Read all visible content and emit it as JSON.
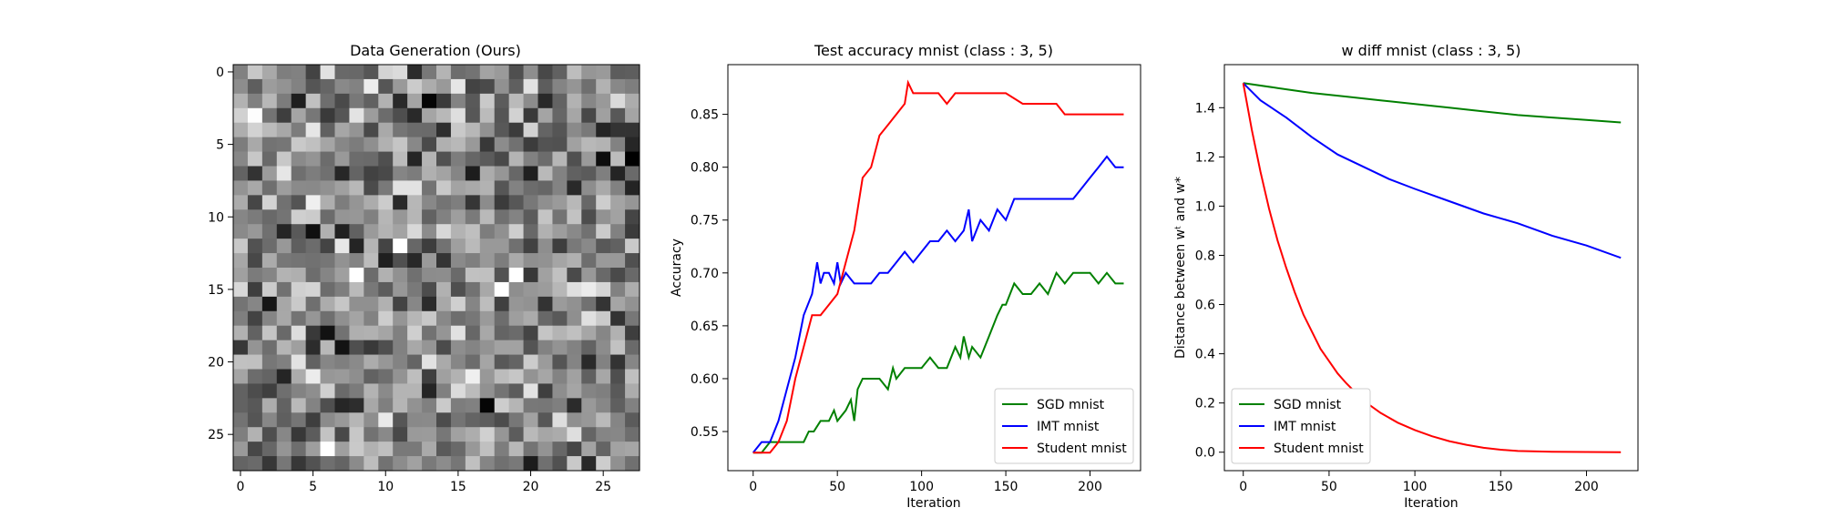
{
  "chart_data": [
    {
      "type": "heatmap",
      "title": "Data Generation (Ours)",
      "xlabel": "",
      "ylabel": "",
      "rows": 28,
      "cols": 28,
      "colormap": "gray",
      "xticks": [
        0,
        5,
        10,
        15,
        20,
        25
      ],
      "yticks": [
        0,
        5,
        10,
        15,
        20,
        25
      ],
      "values_note_seed": 7,
      "notable_cells": [
        {
          "row": 15,
          "col": 18,
          "value": 1.0
        },
        {
          "row": 6,
          "col": 27,
          "value": 0.0
        },
        {
          "row": 6,
          "col": 25,
          "value": 0.05
        },
        {
          "row": 23,
          "col": 17,
          "value": 0.02
        }
      ]
    },
    {
      "type": "line",
      "title": "Test accuracy mnist (class : 3, 5)",
      "xlabel": "Iteration",
      "ylabel": "Accuracy",
      "xlim": [
        -15,
        230
      ],
      "ylim": [
        0.513,
        0.897
      ],
      "xticks": [
        0,
        50,
        100,
        150,
        200
      ],
      "yticks": [
        0.55,
        0.6,
        0.65,
        0.7,
        0.75,
        0.8,
        0.85
      ],
      "legend_position": "bottom-right",
      "series": [
        {
          "name": "SGD mnist",
          "color": "#008000",
          "x": [
            0,
            5,
            10,
            20,
            30,
            33,
            36,
            40,
            45,
            48,
            50,
            55,
            58,
            60,
            62,
            65,
            70,
            75,
            80,
            83,
            85,
            90,
            95,
            100,
            105,
            110,
            115,
            120,
            123,
            125,
            128,
            130,
            135,
            140,
            145,
            148,
            150,
            155,
            160,
            165,
            170,
            175,
            180,
            185,
            190,
            195,
            200,
            205,
            210,
            215,
            220
          ],
          "y": [
            0.53,
            0.53,
            0.54,
            0.54,
            0.54,
            0.55,
            0.55,
            0.56,
            0.56,
            0.57,
            0.56,
            0.57,
            0.58,
            0.56,
            0.59,
            0.6,
            0.6,
            0.6,
            0.59,
            0.61,
            0.6,
            0.61,
            0.61,
            0.61,
            0.62,
            0.61,
            0.61,
            0.63,
            0.62,
            0.64,
            0.62,
            0.63,
            0.62,
            0.64,
            0.66,
            0.67,
            0.67,
            0.69,
            0.68,
            0.68,
            0.69,
            0.68,
            0.7,
            0.69,
            0.7,
            0.7,
            0.7,
            0.69,
            0.7,
            0.69,
            0.69
          ]
        },
        {
          "name": "IMT mnist",
          "color": "#0000ff",
          "x": [
            0,
            5,
            10,
            15,
            20,
            25,
            30,
            35,
            38,
            40,
            42,
            45,
            48,
            50,
            52,
            55,
            60,
            65,
            70,
            75,
            80,
            85,
            90,
            95,
            100,
            105,
            110,
            115,
            120,
            125,
            128,
            130,
            135,
            140,
            145,
            150,
            155,
            160,
            170,
            180,
            190,
            195,
            200,
            205,
            210,
            215,
            220
          ],
          "y": [
            0.53,
            0.54,
            0.54,
            0.56,
            0.59,
            0.62,
            0.66,
            0.68,
            0.71,
            0.69,
            0.7,
            0.7,
            0.69,
            0.71,
            0.69,
            0.7,
            0.69,
            0.69,
            0.69,
            0.7,
            0.7,
            0.71,
            0.72,
            0.71,
            0.72,
            0.73,
            0.73,
            0.74,
            0.73,
            0.74,
            0.76,
            0.73,
            0.75,
            0.74,
            0.76,
            0.75,
            0.77,
            0.77,
            0.77,
            0.77,
            0.77,
            0.78,
            0.79,
            0.8,
            0.81,
            0.8,
            0.8
          ]
        },
        {
          "name": "Student mnist",
          "color": "#ff0000",
          "x": [
            0,
            10,
            15,
            20,
            25,
            30,
            35,
            40,
            45,
            50,
            55,
            60,
            65,
            70,
            75,
            80,
            85,
            90,
            92,
            95,
            100,
            110,
            115,
            120,
            125,
            130,
            140,
            150,
            160,
            170,
            175,
            180,
            185,
            190,
            195,
            200,
            210,
            220
          ],
          "y": [
            0.53,
            0.53,
            0.54,
            0.56,
            0.6,
            0.63,
            0.66,
            0.66,
            0.67,
            0.68,
            0.71,
            0.74,
            0.79,
            0.8,
            0.83,
            0.84,
            0.85,
            0.86,
            0.88,
            0.87,
            0.87,
            0.87,
            0.86,
            0.87,
            0.87,
            0.87,
            0.87,
            0.87,
            0.86,
            0.86,
            0.86,
            0.86,
            0.85,
            0.85,
            0.85,
            0.85,
            0.85,
            0.85
          ]
        }
      ]
    },
    {
      "type": "line",
      "title": "w diff mnist (class : 3, 5)",
      "xlabel": "Iteration",
      "ylabel": "Distance between wᵗ and w*",
      "xlim": [
        -11,
        230
      ],
      "ylim": [
        -0.075,
        1.575
      ],
      "xticks": [
        0,
        50,
        100,
        150,
        200
      ],
      "yticks": [
        0.0,
        0.2,
        0.4,
        0.6,
        0.8,
        1.0,
        1.2,
        1.4
      ],
      "legend_position": "bottom-left",
      "series": [
        {
          "name": "SGD mnist",
          "color": "#008000",
          "x": [
            0,
            20,
            40,
            60,
            80,
            100,
            120,
            140,
            160,
            180,
            200,
            220
          ],
          "y": [
            1.5,
            1.48,
            1.46,
            1.445,
            1.43,
            1.415,
            1.4,
            1.385,
            1.37,
            1.36,
            1.35,
            1.34
          ]
        },
        {
          "name": "IMT mnist",
          "color": "#0000ff",
          "x": [
            0,
            10,
            25,
            40,
            55,
            70,
            85,
            100,
            120,
            140,
            160,
            180,
            200,
            220
          ],
          "y": [
            1.5,
            1.43,
            1.36,
            1.28,
            1.21,
            1.16,
            1.11,
            1.07,
            1.02,
            0.97,
            0.93,
            0.88,
            0.84,
            0.79
          ]
        },
        {
          "name": "Student mnist",
          "color": "#ff0000",
          "x": [
            0,
            5,
            10,
            15,
            20,
            25,
            30,
            35,
            40,
            45,
            50,
            55,
            60,
            70,
            80,
            90,
            100,
            110,
            120,
            130,
            140,
            150,
            160,
            180,
            200,
            220
          ],
          "y": [
            1.5,
            1.31,
            1.14,
            0.99,
            0.86,
            0.75,
            0.65,
            0.56,
            0.49,
            0.42,
            0.37,
            0.32,
            0.28,
            0.21,
            0.16,
            0.12,
            0.09,
            0.065,
            0.045,
            0.03,
            0.018,
            0.01,
            0.005,
            0.002,
            0.001,
            0.0
          ]
        }
      ]
    }
  ]
}
